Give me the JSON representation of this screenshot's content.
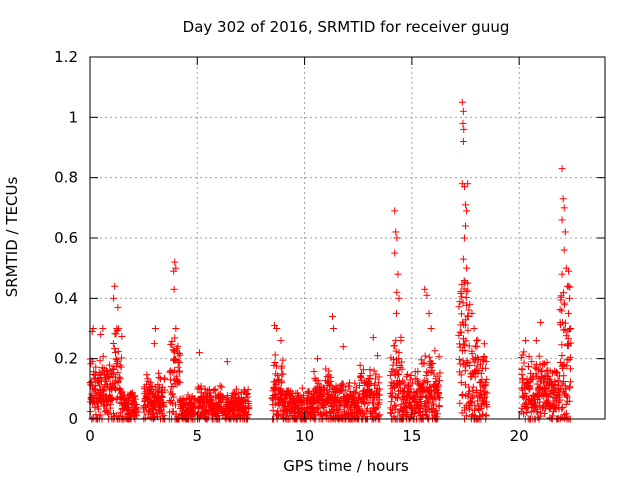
{
  "chart_data": {
    "type": "scatter",
    "title": "Day 302 of 2016, SRMTID for receiver guug",
    "xlabel": "GPS time / hours",
    "ylabel": "SRMTID / TECUs",
    "xlim": [
      0,
      24
    ],
    "ylim": [
      0,
      1.2
    ],
    "x_ticks": [
      0,
      5,
      10,
      15,
      20
    ],
    "x_tick_labels": [
      "0",
      "5",
      "10",
      "15",
      "20"
    ],
    "y_ticks": [
      0,
      0.2,
      0.4,
      0.6,
      0.8,
      1,
      1.2
    ],
    "y_tick_labels": [
      "0",
      "0.2",
      "0.4",
      "0.6",
      "0.8",
      "1",
      "1.2"
    ],
    "grid": true,
    "marker": "plus",
    "color": "#ff0000",
    "sample_interval_hours": 0.02,
    "clusters": [
      {
        "start": 0.0,
        "end": 1.0,
        "base": 0.12,
        "spread": 0.08
      },
      {
        "start": 1.0,
        "end": 1.5,
        "base": 0.18,
        "spread": 0.12
      },
      {
        "start": 1.5,
        "end": 2.2,
        "base": 0.05,
        "spread": 0.05
      },
      {
        "start": 2.5,
        "end": 3.5,
        "base": 0.08,
        "spread": 0.07
      },
      {
        "start": 3.7,
        "end": 4.2,
        "base": 0.15,
        "spread": 0.12
      },
      {
        "start": 4.2,
        "end": 4.9,
        "base": 0.04,
        "spread": 0.04
      },
      {
        "start": 5.0,
        "end": 6.2,
        "base": 0.06,
        "spread": 0.05
      },
      {
        "start": 6.3,
        "end": 7.4,
        "base": 0.05,
        "spread": 0.05
      },
      {
        "start": 8.5,
        "end": 9.0,
        "base": 0.12,
        "spread": 0.08
      },
      {
        "start": 9.0,
        "end": 10.4,
        "base": 0.05,
        "spread": 0.05
      },
      {
        "start": 10.4,
        "end": 11.2,
        "base": 0.09,
        "spread": 0.07
      },
      {
        "start": 11.2,
        "end": 12.5,
        "base": 0.07,
        "spread": 0.07
      },
      {
        "start": 12.5,
        "end": 13.5,
        "base": 0.09,
        "spread": 0.08
      },
      {
        "start": 14.0,
        "end": 14.6,
        "base": 0.15,
        "spread": 0.14
      },
      {
        "start": 14.6,
        "end": 15.4,
        "base": 0.08,
        "spread": 0.08
      },
      {
        "start": 15.4,
        "end": 16.3,
        "base": 0.12,
        "spread": 0.1
      },
      {
        "start": 17.2,
        "end": 17.7,
        "base": 0.3,
        "spread": 0.22
      },
      {
        "start": 17.7,
        "end": 18.5,
        "base": 0.15,
        "spread": 0.12
      },
      {
        "start": 20.1,
        "end": 21.3,
        "base": 0.12,
        "spread": 0.1
      },
      {
        "start": 21.3,
        "end": 21.9,
        "base": 0.09,
        "spread": 0.08
      },
      {
        "start": 21.9,
        "end": 22.4,
        "base": 0.25,
        "spread": 0.18
      }
    ],
    "peaks": [
      {
        "x": 0.1,
        "y": 0.29
      },
      {
        "x": 0.15,
        "y": 0.3
      },
      {
        "x": 0.5,
        "y": 0.28
      },
      {
        "x": 0.6,
        "y": 0.3
      },
      {
        "x": 1.1,
        "y": 0.4
      },
      {
        "x": 1.15,
        "y": 0.44
      },
      {
        "x": 1.3,
        "y": 0.37
      },
      {
        "x": 1.25,
        "y": 0.3
      },
      {
        "x": 3.05,
        "y": 0.3
      },
      {
        "x": 3.0,
        "y": 0.25
      },
      {
        "x": 3.9,
        "y": 0.49
      },
      {
        "x": 3.95,
        "y": 0.52
      },
      {
        "x": 4.0,
        "y": 0.5
      },
      {
        "x": 3.92,
        "y": 0.43
      },
      {
        "x": 4.0,
        "y": 0.3
      },
      {
        "x": 5.1,
        "y": 0.22
      },
      {
        "x": 6.4,
        "y": 0.19
      },
      {
        "x": 8.6,
        "y": 0.31
      },
      {
        "x": 8.7,
        "y": 0.3
      },
      {
        "x": 8.9,
        "y": 0.26
      },
      {
        "x": 10.6,
        "y": 0.2
      },
      {
        "x": 11.3,
        "y": 0.34
      },
      {
        "x": 11.35,
        "y": 0.3
      },
      {
        "x": 11.8,
        "y": 0.24
      },
      {
        "x": 13.2,
        "y": 0.27
      },
      {
        "x": 13.4,
        "y": 0.21
      },
      {
        "x": 14.2,
        "y": 0.69
      },
      {
        "x": 14.25,
        "y": 0.62
      },
      {
        "x": 14.3,
        "y": 0.6
      },
      {
        "x": 14.2,
        "y": 0.55
      },
      {
        "x": 14.35,
        "y": 0.48
      },
      {
        "x": 14.3,
        "y": 0.42
      },
      {
        "x": 14.4,
        "y": 0.4
      },
      {
        "x": 14.28,
        "y": 0.35
      },
      {
        "x": 15.6,
        "y": 0.43
      },
      {
        "x": 15.7,
        "y": 0.41
      },
      {
        "x": 15.8,
        "y": 0.35
      },
      {
        "x": 15.9,
        "y": 0.3
      },
      {
        "x": 17.35,
        "y": 1.05
      },
      {
        "x": 17.4,
        "y": 1.02
      },
      {
        "x": 17.38,
        "y": 0.98
      },
      {
        "x": 17.42,
        "y": 0.96
      },
      {
        "x": 17.4,
        "y": 0.92
      },
      {
        "x": 17.35,
        "y": 0.78
      },
      {
        "x": 17.45,
        "y": 0.77
      },
      {
        "x": 17.5,
        "y": 0.71
      },
      {
        "x": 17.6,
        "y": 0.78
      },
      {
        "x": 17.55,
        "y": 0.69
      },
      {
        "x": 17.5,
        "y": 0.64
      },
      {
        "x": 17.45,
        "y": 0.6
      },
      {
        "x": 17.4,
        "y": 0.53
      },
      {
        "x": 17.55,
        "y": 0.5
      },
      {
        "x": 17.6,
        "y": 0.45
      },
      {
        "x": 17.7,
        "y": 0.38
      },
      {
        "x": 17.8,
        "y": 0.35
      },
      {
        "x": 17.9,
        "y": 0.3
      },
      {
        "x": 20.3,
        "y": 0.26
      },
      {
        "x": 20.8,
        "y": 0.26
      },
      {
        "x": 21.0,
        "y": 0.32
      },
      {
        "x": 22.0,
        "y": 0.83
      },
      {
        "x": 22.05,
        "y": 0.73
      },
      {
        "x": 22.1,
        "y": 0.7
      },
      {
        "x": 22.0,
        "y": 0.66
      },
      {
        "x": 22.15,
        "y": 0.62
      },
      {
        "x": 22.1,
        "y": 0.56
      },
      {
        "x": 22.2,
        "y": 0.5
      },
      {
        "x": 22.3,
        "y": 0.49
      },
      {
        "x": 22.0,
        "y": 0.48
      },
      {
        "x": 22.25,
        "y": 0.44
      },
      {
        "x": 22.35,
        "y": 0.4
      },
      {
        "x": 22.3,
        "y": 0.35
      },
      {
        "x": 22.4,
        "y": 0.3
      }
    ]
  }
}
